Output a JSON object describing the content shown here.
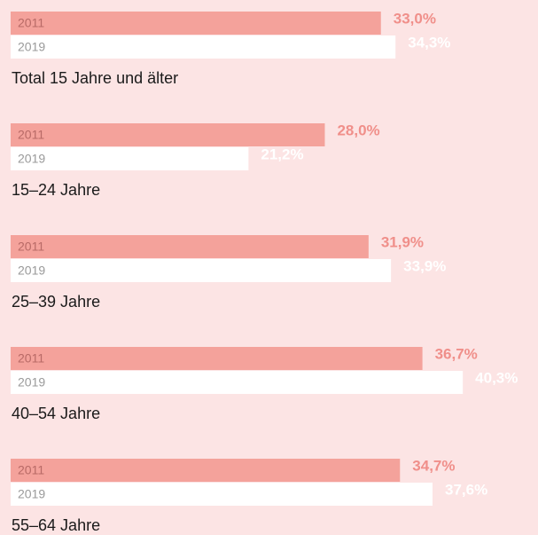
{
  "chart_data": {
    "type": "bar",
    "orientation": "horizontal",
    "categories": [
      "Total 15 Jahre und älter",
      "15–24 Jahre",
      "25–39 Jahre",
      "40–54 Jahre",
      "55–64 Jahre"
    ],
    "series": [
      {
        "name": "2011",
        "color": "#f4a29b",
        "label_color": "#f08f8a",
        "values": [
          33.0,
          28.0,
          31.9,
          36.7,
          34.7
        ],
        "value_labels": [
          "33,0%",
          "28,0%",
          "31,9%",
          "36,7%",
          "34,7%"
        ]
      },
      {
        "name": "2019",
        "color": "#ffffff",
        "label_color": "#ffffff",
        "values": [
          34.3,
          21.2,
          33.9,
          40.3,
          37.6
        ],
        "value_labels": [
          "34,3%",
          "21,2%",
          "33,9%",
          "40,3%",
          "37,6%"
        ]
      }
    ],
    "xlim": [
      0,
      47
    ]
  }
}
